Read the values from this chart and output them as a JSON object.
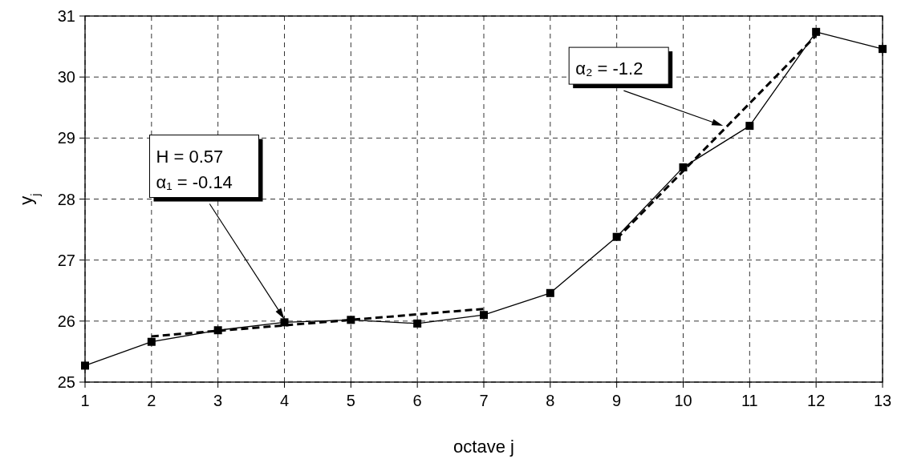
{
  "chart_data": {
    "type": "line",
    "xlabel": "octave j",
    "ylabel": "y$_{j}$",
    "x": [
      1,
      2,
      3,
      4,
      5,
      6,
      7,
      8,
      9,
      10,
      11,
      12,
      13
    ],
    "series": [
      {
        "color": "#000000",
        "values": [
          25.27,
          25.66,
          25.85,
          25.98,
          26.02,
          25.96,
          26.1,
          26.46,
          27.38,
          28.52,
          29.2,
          30.74,
          30.46
        ],
        "marker": "square",
        "line_style": "solid"
      },
      {
        "color": "#000000",
        "x": [
          2,
          7
        ],
        "values": [
          25.75,
          26.2
        ],
        "marker": "none",
        "line_style": "dashed"
      },
      {
        "color": "#000000",
        "x": [
          9,
          12
        ],
        "values": [
          27.35,
          30.68
        ],
        "marker": "none",
        "line_style": "dashed"
      }
    ],
    "xlim": [
      1,
      13
    ],
    "xticks": [
      1,
      2,
      3,
      4,
      5,
      6,
      7,
      8,
      9,
      10,
      11,
      12,
      13
    ],
    "ylim": [
      25,
      31
    ],
    "yticks": [
      25,
      26,
      27,
      28,
      29,
      30,
      31
    ],
    "grid": true,
    "annotations": [
      {
        "text": "H = 0.57\nα₁ = -0.14",
        "x": 4,
        "y": 26.03
      },
      {
        "text": "α₂ = -1.2",
        "x": 10.6,
        "y": 29.2
      }
    ]
  }
}
